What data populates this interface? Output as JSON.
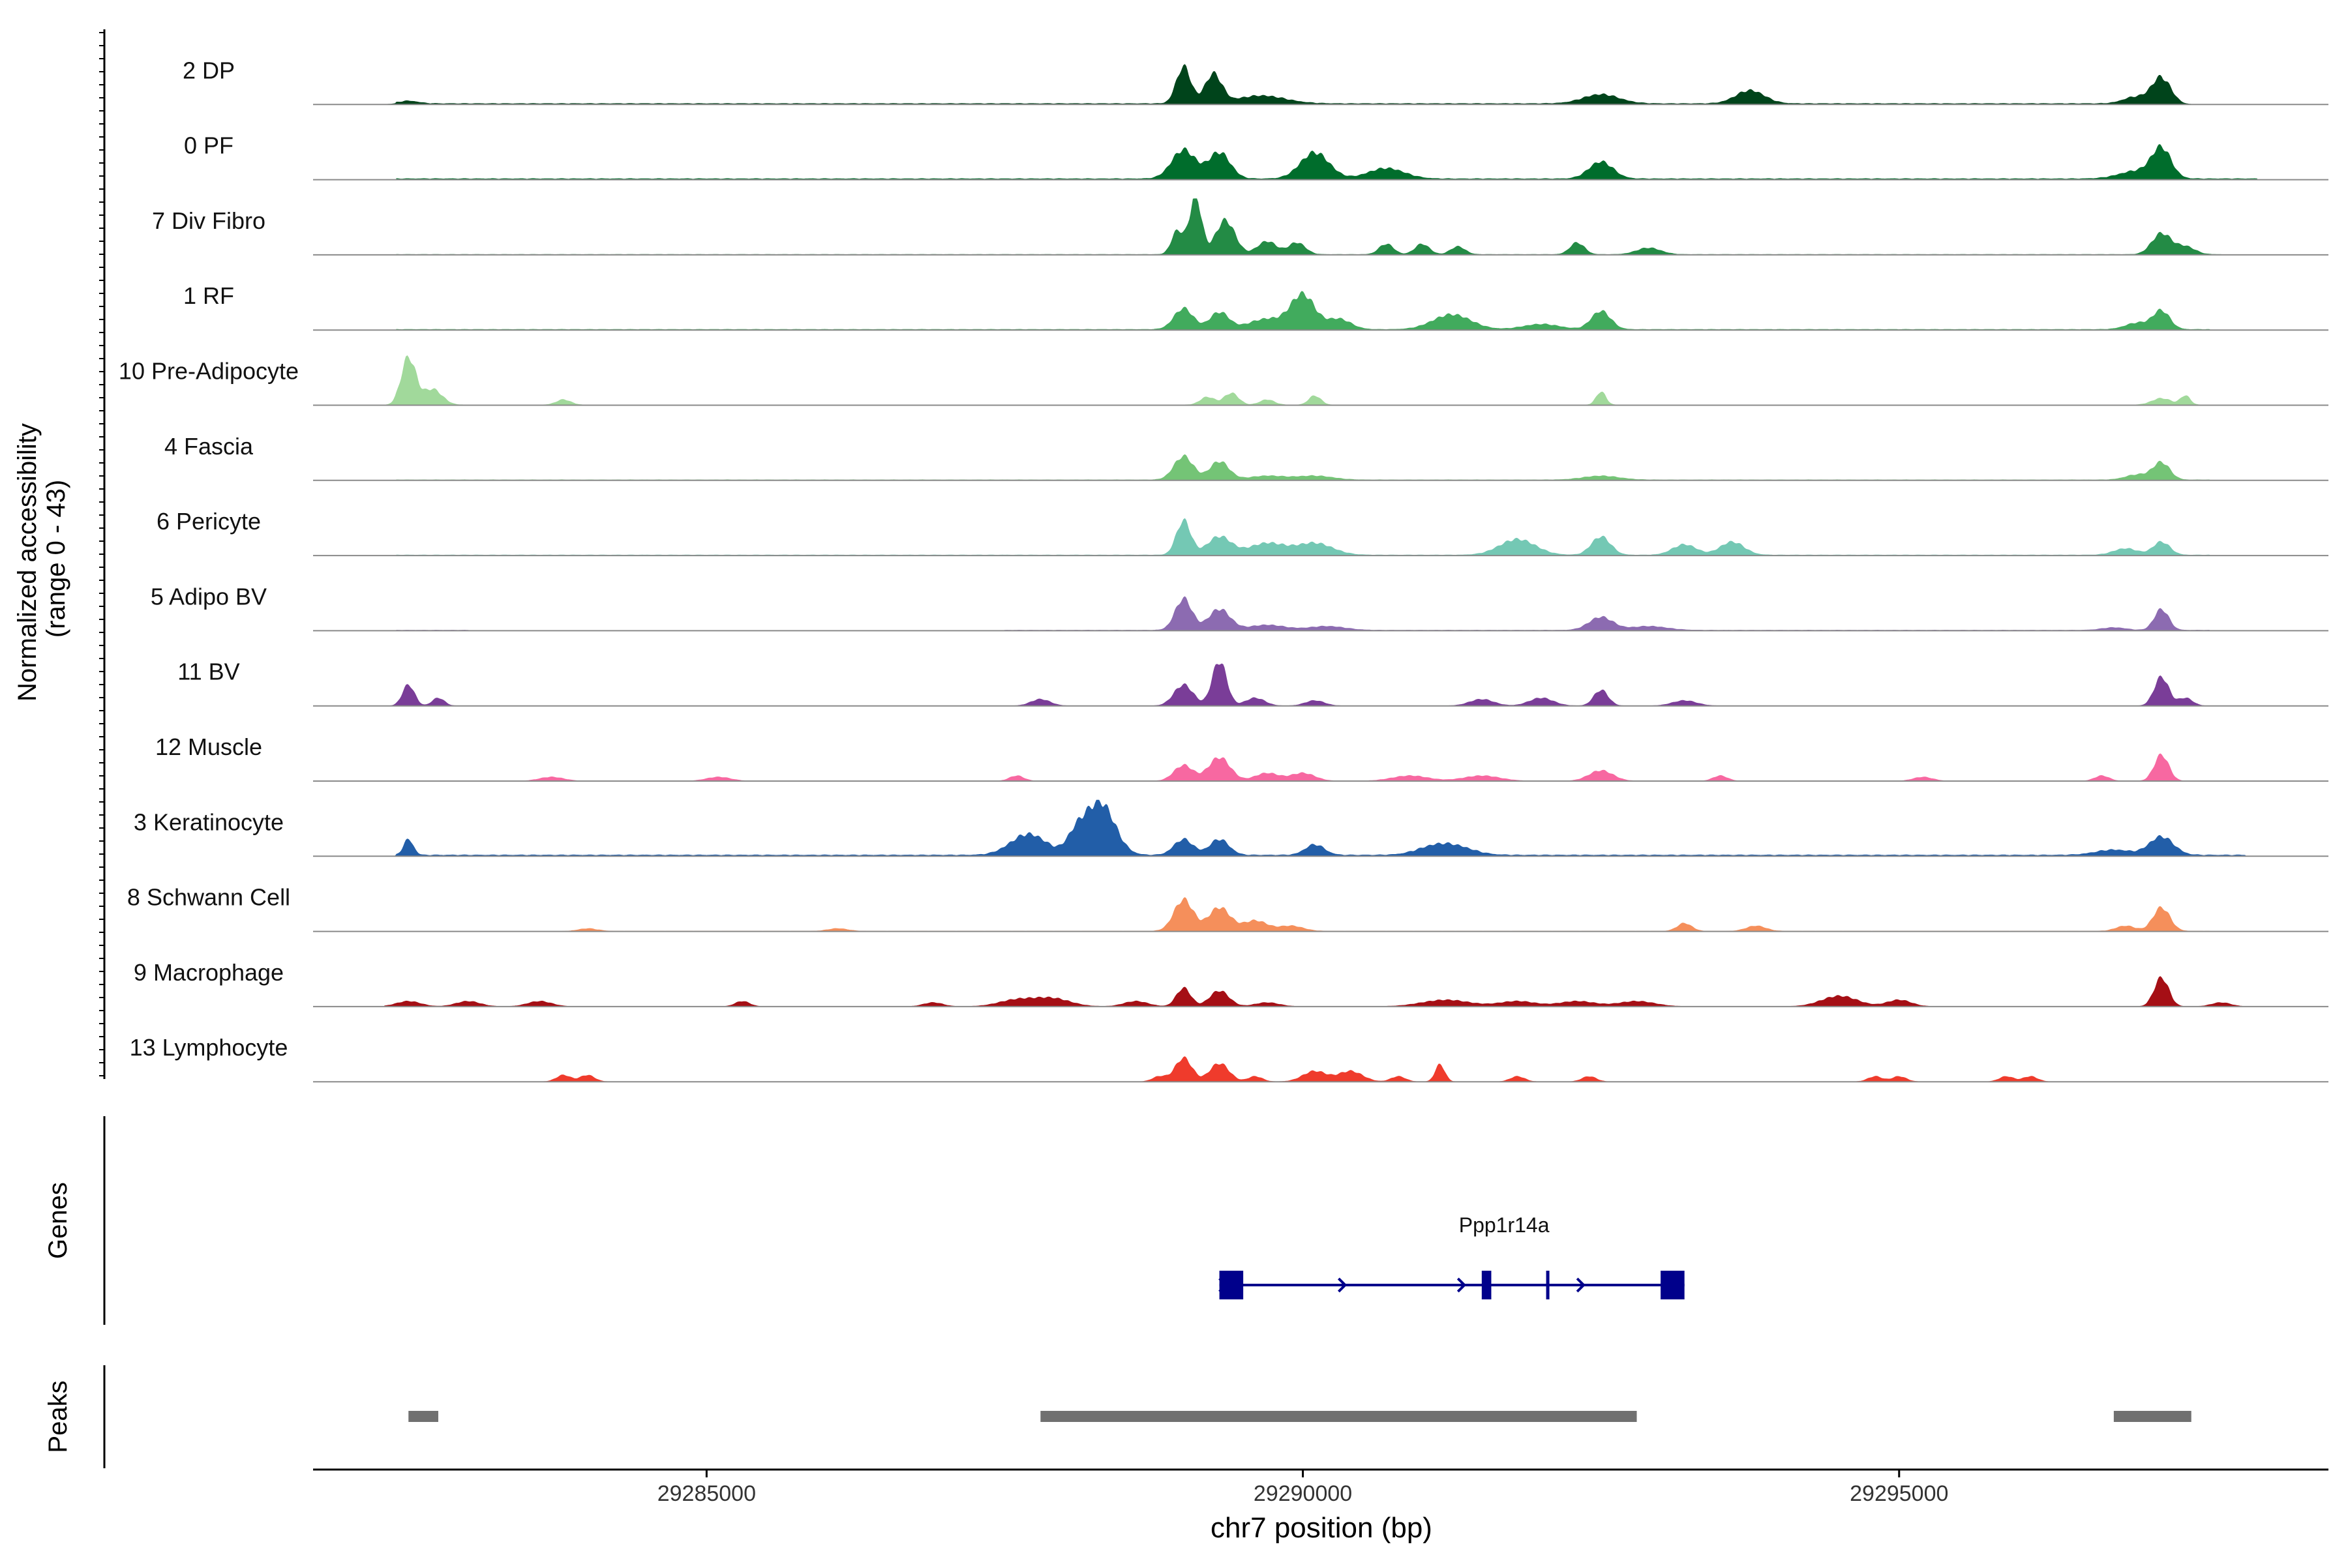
{
  "chart_data": {
    "type": "area",
    "title": "",
    "ylabel": "Normalized accessibility",
    "ylabel_range": "(range 0 - 43)",
    "xlabel": "chr7 position (bp)",
    "xlim": [
      29281700,
      29298600
    ],
    "ylim": [
      0,
      43
    ],
    "x_ticks": [
      29285000,
      29290000,
      29295000
    ],
    "x_tick_labels": [
      "29285000",
      "29290000",
      "29295000"
    ],
    "tracks": [
      {
        "name": "2 DP",
        "color": "#00441b",
        "peaks": [
          [
            29282500,
            2,
            80
          ],
          [
            29289000,
            28,
            60
          ],
          [
            29289250,
            22,
            70
          ],
          [
            29289650,
            6,
            200
          ],
          [
            29292500,
            7,
            150
          ],
          [
            29293750,
            10,
            120
          ],
          [
            29297200,
            20,
            80
          ],
          [
            29296980,
            5,
            100
          ]
        ],
        "base": 0.8,
        "segments": [
          [
            29282400,
            29297200
          ],
          [
            29286000,
            29294200
          ]
        ]
      },
      {
        "name": "0 PF",
        "color": "#006d2c",
        "peaks": [
          [
            29289000,
            22,
            100
          ],
          [
            29289300,
            20,
            90
          ],
          [
            29290100,
            20,
            120
          ],
          [
            29290700,
            8,
            150
          ],
          [
            29292500,
            13,
            100
          ],
          [
            29297200,
            22,
            80
          ],
          [
            29297000,
            6,
            150
          ]
        ],
        "base": 0.8,
        "segments": [
          [
            29282400,
            29298000
          ]
        ]
      },
      {
        "name": "7 Div Fibro",
        "color": "#238b45",
        "peaks": [
          [
            29289100,
            44,
            50
          ],
          [
            29289350,
            26,
            80
          ],
          [
            29288950,
            18,
            50
          ],
          [
            29289700,
            10,
            80
          ],
          [
            29289950,
            9,
            70
          ],
          [
            29290700,
            8,
            60
          ],
          [
            29291000,
            8,
            60
          ],
          [
            29291300,
            6,
            60
          ],
          [
            29292300,
            9,
            60
          ],
          [
            29292900,
            5,
            100
          ],
          [
            29297200,
            16,
            80
          ],
          [
            29297400,
            6,
            80
          ]
        ],
        "base": 0.3,
        "segments": [
          [
            29282400,
            29297700
          ]
        ]
      },
      {
        "name": "1 RF",
        "color": "#41ab5d",
        "peaks": [
          [
            29289000,
            16,
            80
          ],
          [
            29289300,
            13,
            80
          ],
          [
            29290000,
            26,
            100
          ],
          [
            29289700,
            8,
            150
          ],
          [
            29290300,
            8,
            100
          ],
          [
            29291200,
            6,
            150
          ],
          [
            29291300,
            6,
            150
          ],
          [
            29292500,
            14,
            80
          ],
          [
            29292000,
            4,
            150
          ],
          [
            29297200,
            14,
            70
          ],
          [
            29297000,
            5,
            100
          ]
        ],
        "base": 0.5,
        "segments": [
          [
            29282400,
            29297600
          ]
        ]
      },
      {
        "name": "10 Pre-Adipocyte",
        "color": "#a1d99b",
        "peaks": [
          [
            29282500,
            36,
            60
          ],
          [
            29282700,
            12,
            80
          ],
          [
            29283800,
            4,
            60
          ],
          [
            29289200,
            6,
            60
          ],
          [
            29289400,
            9,
            60
          ],
          [
            29289700,
            4,
            60
          ],
          [
            29290100,
            7,
            50
          ],
          [
            29292500,
            10,
            40
          ],
          [
            29297200,
            5,
            80
          ],
          [
            29297400,
            7,
            40
          ]
        ],
        "base": 0.2,
        "segments": [
          [
            29282400,
            29297600
          ]
        ]
      },
      {
        "name": "4 Fascia",
        "color": "#74c476",
        "peaks": [
          [
            29289000,
            18,
            80
          ],
          [
            29289300,
            14,
            80
          ],
          [
            29289700,
            3,
            150
          ],
          [
            29290100,
            3,
            150
          ],
          [
            29292500,
            3,
            150
          ],
          [
            29297200,
            13,
            70
          ],
          [
            29297000,
            4,
            100
          ]
        ],
        "base": 0.4,
        "segments": [
          [
            29282400,
            29297600
          ]
        ]
      },
      {
        "name": "6 Pericyte",
        "color": "#74c8b4",
        "peaks": [
          [
            29289000,
            26,
            60
          ],
          [
            29289300,
            14,
            100
          ],
          [
            29289700,
            9,
            150
          ],
          [
            29290100,
            9,
            150
          ],
          [
            29291800,
            12,
            150
          ],
          [
            29292500,
            14,
            80
          ],
          [
            29293200,
            8,
            100
          ],
          [
            29293600,
            10,
            100
          ],
          [
            29297200,
            10,
            70
          ],
          [
            29296900,
            5,
            100
          ]
        ],
        "base": 0.4,
        "segments": [
          [
            29282400,
            29297600
          ]
        ]
      },
      {
        "name": "5 Adipo BV",
        "color": "#8c6bb1",
        "peaks": [
          [
            29289000,
            24,
            70
          ],
          [
            29289300,
            16,
            90
          ],
          [
            29289700,
            4,
            150
          ],
          [
            29290200,
            3,
            150
          ],
          [
            29292500,
            10,
            100
          ],
          [
            29292900,
            3,
            150
          ],
          [
            29297200,
            16,
            60
          ],
          [
            29296800,
            2,
            100
          ]
        ],
        "base": 0.4,
        "segments": [
          [
            29287500,
            29297600
          ],
          [
            29282400,
            29283000
          ]
        ]
      },
      {
        "name": "11 BV",
        "color": "#7a3d98",
        "peaks": [
          [
            29282500,
            16,
            50
          ],
          [
            29282750,
            6,
            50
          ],
          [
            29287800,
            5,
            80
          ],
          [
            29289000,
            16,
            80
          ],
          [
            29289300,
            34,
            60
          ],
          [
            29289600,
            6,
            80
          ],
          [
            29290100,
            4,
            80
          ],
          [
            29291500,
            5,
            100
          ],
          [
            29292000,
            6,
            100
          ],
          [
            29292500,
            12,
            60
          ],
          [
            29293200,
            4,
            100
          ],
          [
            29297200,
            22,
            60
          ],
          [
            29297400,
            6,
            60
          ]
        ],
        "base": 0,
        "segments": []
      },
      {
        "name": "12 Muscle",
        "color": "#f768a1",
        "peaks": [
          [
            29283700,
            3,
            100
          ],
          [
            29285100,
            3,
            100
          ],
          [
            29287600,
            4,
            60
          ],
          [
            29289000,
            12,
            80
          ],
          [
            29289300,
            18,
            90
          ],
          [
            29289700,
            6,
            100
          ],
          [
            29290000,
            6,
            100
          ],
          [
            29290900,
            4,
            150
          ],
          [
            29291500,
            4,
            150
          ],
          [
            29292500,
            8,
            100
          ],
          [
            29293500,
            4,
            60
          ],
          [
            29295200,
            3,
            80
          ],
          [
            29296700,
            4,
            60
          ],
          [
            29297200,
            20,
            60
          ]
        ],
        "base": 0,
        "segments": []
      },
      {
        "name": "3 Keratinocyte",
        "color": "#225ea8",
        "peaks": [
          [
            29282500,
            12,
            40
          ],
          [
            29287700,
            16,
            150
          ],
          [
            29288300,
            40,
            120
          ],
          [
            29288100,
            14,
            80
          ],
          [
            29289000,
            12,
            80
          ],
          [
            29289300,
            12,
            80
          ],
          [
            29290100,
            8,
            80
          ],
          [
            29291100,
            6,
            150
          ],
          [
            29291300,
            5,
            150
          ],
          [
            29297200,
            14,
            100
          ],
          [
            29296800,
            4,
            150
          ]
        ],
        "base": 1,
        "segments": [
          [
            29282400,
            29297900
          ]
        ]
      },
      {
        "name": "8 Schwann Cell",
        "color": "#f58f5b",
        "peaks": [
          [
            29289000,
            24,
            80
          ],
          [
            29289300,
            18,
            90
          ],
          [
            29289600,
            8,
            100
          ],
          [
            29289900,
            4,
            100
          ],
          [
            29293200,
            6,
            60
          ],
          [
            29293800,
            4,
            80
          ],
          [
            29297200,
            18,
            70
          ],
          [
            29296900,
            4,
            80
          ],
          [
            29284000,
            2,
            80
          ],
          [
            29286100,
            2,
            80
          ]
        ],
        "base": 0.2,
        "segments": [
          [
            29284000,
            29297600
          ]
        ]
      },
      {
        "name": "9 Macrophage",
        "color": "#a50f15",
        "peaks": [
          [
            29282500,
            4,
            100
          ],
          [
            29283000,
            4,
            100
          ],
          [
            29283600,
            4,
            100
          ],
          [
            29285300,
            4,
            60
          ],
          [
            29286900,
            3,
            80
          ],
          [
            29287600,
            5,
            150
          ],
          [
            29287900,
            6,
            150
          ],
          [
            29288600,
            4,
            100
          ],
          [
            29289000,
            14,
            60
          ],
          [
            29289300,
            12,
            80
          ],
          [
            29289700,
            3,
            100
          ],
          [
            29291200,
            5,
            200
          ],
          [
            29291800,
            4,
            150
          ],
          [
            29292300,
            4,
            150
          ],
          [
            29292800,
            4,
            150
          ],
          [
            29294500,
            8,
            150
          ],
          [
            29295000,
            5,
            100
          ],
          [
            29297200,
            22,
            60
          ],
          [
            29297700,
            3,
            80
          ]
        ],
        "base": 0,
        "segments": []
      },
      {
        "name": "13 Lymphocyte",
        "color": "#ef3b2c",
        "peaks": [
          [
            29283800,
            5,
            60
          ],
          [
            29284000,
            5,
            60
          ],
          [
            29288800,
            4,
            60
          ],
          [
            29289000,
            18,
            70
          ],
          [
            29289300,
            14,
            80
          ],
          [
            29289600,
            4,
            60
          ],
          [
            29290100,
            8,
            100
          ],
          [
            29290400,
            8,
            100
          ],
          [
            29290800,
            4,
            60
          ],
          [
            29291150,
            13,
            40
          ],
          [
            29291800,
            4,
            60
          ],
          [
            29292400,
            4,
            60
          ],
          [
            29294800,
            4,
            60
          ],
          [
            29295000,
            4,
            60
          ],
          [
            29295900,
            4,
            60
          ],
          [
            29296100,
            4,
            60
          ]
        ],
        "base": 0,
        "segments": []
      }
    ],
    "genes_label": "Genes",
    "gene": {
      "name": "Ppp1r14a",
      "color": "#00008b",
      "start": 29289300,
      "end": 29293200,
      "exons": [
        [
          29289300,
          29289500
        ],
        [
          29291500,
          29291580
        ],
        [
          29292040,
          29292060
        ],
        [
          29293000,
          29293200
        ]
      ],
      "arrows": [
        29289300,
        29290300,
        29291300,
        29292300
      ]
    },
    "peaks_label": "Peaks",
    "peak_regions": [
      [
        29282500,
        29282750
      ],
      [
        29287800,
        29292800
      ],
      [
        29296800,
        29297450
      ]
    ],
    "peak_color": "#707070"
  }
}
